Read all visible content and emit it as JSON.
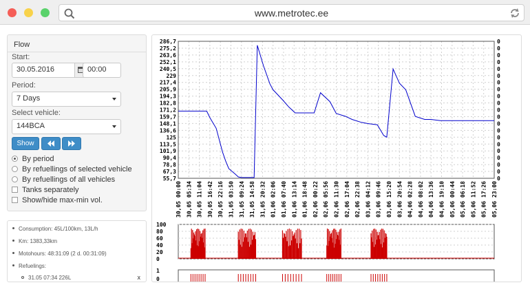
{
  "browser": {
    "url": "www.metrotec.ee"
  },
  "flow_panel": {
    "title": "Flow",
    "start_label": "Start:",
    "start_date": "30.05.2016",
    "start_time": "00:00",
    "period_label": "Period:",
    "period_value": "7 Days",
    "vehicle_label": "Select vehicle:",
    "vehicle_value": "144BCA",
    "show_button": "Show",
    "options": {
      "by_period": "By period",
      "by_refuel_selected": "By refuellings of selected vehicle",
      "by_refuel_all": "By refuellings of all vehicles",
      "tanks_separately": "Tanks separately",
      "show_hide": "Show/hide max-min vol."
    }
  },
  "info": {
    "consumption": "Consumption: 45L/100km, 13L/h",
    "km": "Km: 1383,33km",
    "motohours": "Motohours: 48:31:09 (2 d. 00:31:09)",
    "refuelings_label": "Refuelings:",
    "refuel_1": "31.05 07:34 226L",
    "remove": "x"
  },
  "chart_data": [
    {
      "type": "line",
      "y_ticks_left": [
        "286,7",
        "275,2",
        "263,6",
        "252,1",
        "240,5",
        "229",
        "217,4",
        "205,9",
        "194,3",
        "182,8",
        "171,2",
        "159,7",
        "148,1",
        "136,6",
        "125",
        "113,5",
        "101,9",
        "90,4",
        "78,8",
        "67,3",
        "55,7"
      ],
      "y_ticks_right": [
        "0",
        "0",
        "0",
        "0",
        "0",
        "0",
        "0",
        "0",
        "0",
        "0",
        "0",
        "0",
        "0",
        "0",
        "0",
        "0",
        "0",
        "0",
        "0",
        "0",
        "0"
      ],
      "x_ticks": [
        "30,05 00:00",
        "30,05 05:34",
        "30,05 11:04",
        "30,05 16:42",
        "30,05 22:16",
        "31,05 03:50",
        "31,05 09:24",
        "31,05 14:58",
        "31,05 20:32",
        "01,06 02:06",
        "01,06 07:40",
        "01,06 13:14",
        "01,06 18:48",
        "02,06 00:22",
        "02,06 05:56",
        "02,06 11:30",
        "02,06 17:04",
        "02,06 22:38",
        "03,06 04:12",
        "03,06 09:46",
        "03,06 15:20",
        "03,06 20:54",
        "04,06 02:28",
        "04,06 08:02",
        "04,06 13:36",
        "04,06 19:10",
        "05,06 00:44",
        "05,06 06:18",
        "05,06 11:52",
        "05,06 17:26",
        "05,06 23:00"
      ],
      "ylim": [
        55.7,
        286.7
      ],
      "color": "#0000cc",
      "series": [
        {
          "x": [
            0,
            0.09,
            0.1,
            0.12,
            0.13,
            0.14,
            0.15,
            0.16,
            0.18,
            0.19,
            0.2,
            0.22,
            0.24,
            0.25,
            0.27,
            0.29,
            0.3,
            0.33,
            0.35,
            0.37,
            0.39,
            0.4,
            0.43,
            0.45,
            0.48,
            0.5,
            0.53,
            0.55,
            0.58,
            0.6,
            0.63,
            0.65,
            0.66,
            0.68,
            0.7,
            0.72,
            0.75,
            0.78,
            0.8,
            0.83,
            0.86,
            0.9,
            0.95,
            1.0
          ],
          "y": [
            169,
            169,
            158,
            140,
            120,
            100,
            85,
            72,
            63,
            58,
            57,
            57,
            57,
            280,
            245,
            215,
            205,
            188,
            176,
            166,
            166,
            166,
            166,
            200,
            185,
            165,
            160,
            155,
            150,
            148,
            146,
            128,
            125,
            240,
            216,
            205,
            160,
            155,
            155,
            153,
            153,
            153,
            153,
            153
          ]
        }
      ]
    },
    {
      "type": "area",
      "y_ticks": [
        "100",
        "80",
        "60",
        "40",
        "20",
        "0"
      ],
      "ylim": [
        0,
        100
      ],
      "color": "#cc0000"
    },
    {
      "type": "area",
      "y_ticks": [
        "1",
        "0"
      ],
      "ylim": [
        0,
        1
      ],
      "color": "#cc0000"
    }
  ]
}
